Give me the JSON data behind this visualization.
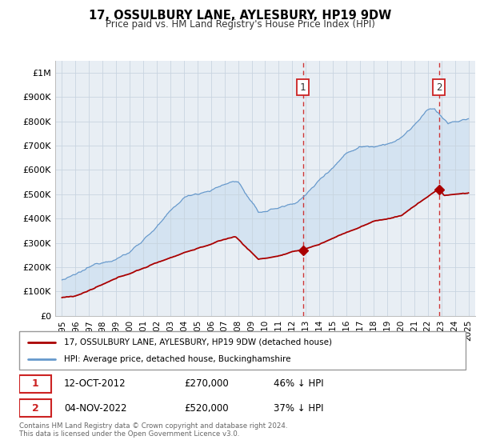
{
  "title": "17, OSSULBURY LANE, AYLESBURY, HP19 9DW",
  "subtitle": "Price paid vs. HM Land Registry's House Price Index (HPI)",
  "bg_color": "#f0f4f8",
  "plot_bg_color": "#e8eef4",
  "grid_color": "#c8d4e0",
  "sale1_date_x": 2012.79,
  "sale1_price": 270000,
  "sale1_label": "1",
  "sale2_date_x": 2022.84,
  "sale2_price": 520000,
  "sale2_label": "2",
  "hpi_color": "#6699cc",
  "sale_color": "#aa0000",
  "vline_color": "#cc2222",
  "shade_color": "#c8ddf0",
  "legend1": "17, OSSULBURY LANE, AYLESBURY, HP19 9DW (detached house)",
  "legend2": "HPI: Average price, detached house, Buckinghamshire",
  "footer": "Contains HM Land Registry data © Crown copyright and database right 2024.\nThis data is licensed under the Open Government Licence v3.0.",
  "ylim_max": 1050000,
  "xmin": 1994.5,
  "xmax": 2025.5,
  "yticks": [
    0,
    100000,
    200000,
    300000,
    400000,
    500000,
    600000,
    700000,
    800000,
    900000,
    1000000
  ],
  "ytick_labels": [
    "£0",
    "£100K",
    "£200K",
    "£300K",
    "£400K",
    "£500K",
    "£600K",
    "£700K",
    "£800K",
    "£900K",
    "£1M"
  ],
  "xticks": [
    1995,
    1996,
    1997,
    1998,
    1999,
    2000,
    2001,
    2002,
    2003,
    2004,
    2005,
    2006,
    2007,
    2008,
    2009,
    2010,
    2011,
    2012,
    2013,
    2014,
    2015,
    2016,
    2017,
    2018,
    2019,
    2020,
    2021,
    2022,
    2023,
    2024,
    2025
  ]
}
